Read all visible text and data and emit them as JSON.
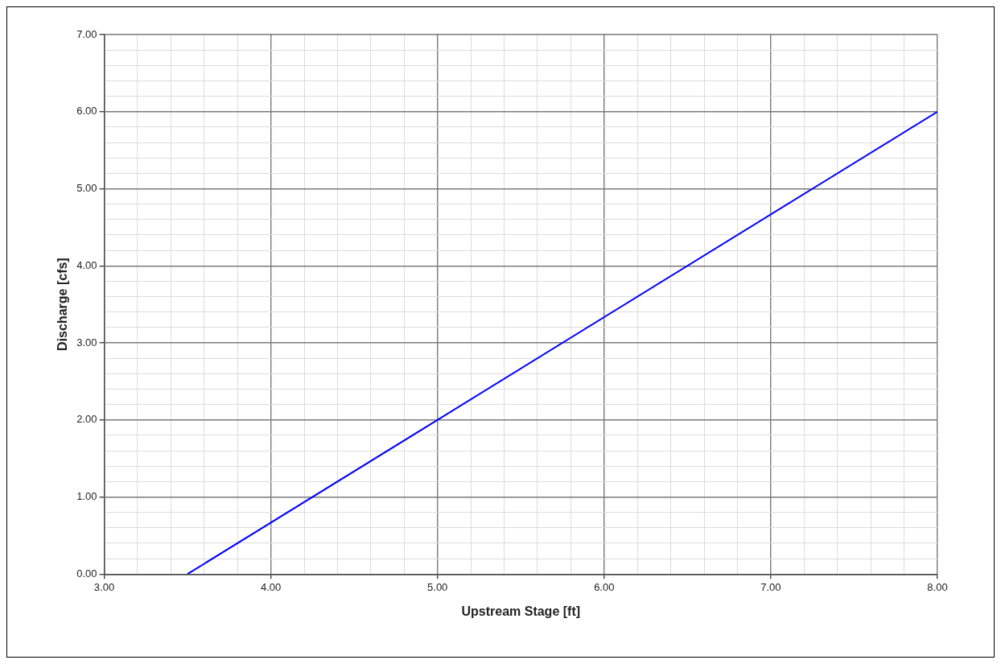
{
  "chart_data": {
    "type": "line",
    "xlabel": "Upstream Stage [ft]",
    "ylabel": "Discharge [cfs]",
    "x": [
      3.5,
      8.0
    ],
    "series": [
      {
        "color": "#0000ff",
        "values": [
          0.0,
          6.0
        ]
      }
    ],
    "xlim": [
      3,
      8
    ],
    "ylim": [
      0,
      7
    ],
    "xticks": [
      {
        "value": 3,
        "label": "3.00"
      },
      {
        "value": 3.2,
        "label": null
      },
      {
        "value": 3.4,
        "label": null
      },
      {
        "value": 3.6,
        "label": null
      },
      {
        "value": 3.8,
        "label": null
      },
      {
        "value": 4,
        "label": "4.00"
      },
      {
        "value": 4.2,
        "label": null
      },
      {
        "value": 4.4,
        "label": null
      },
      {
        "value": 4.6,
        "label": null
      },
      {
        "value": 4.8,
        "label": null
      },
      {
        "value": 5,
        "label": "5.00"
      },
      {
        "value": 5.2,
        "label": null
      },
      {
        "value": 5.4,
        "label": null
      },
      {
        "value": 5.6,
        "label": null
      },
      {
        "value": 5.8,
        "label": null
      },
      {
        "value": 6,
        "label": "6.00"
      },
      {
        "value": 6.2,
        "label": null
      },
      {
        "value": 6.4,
        "label": null
      },
      {
        "value": 6.6,
        "label": null
      },
      {
        "value": 6.8,
        "label": null
      },
      {
        "value": 7,
        "label": "7.00"
      },
      {
        "value": 7.2,
        "label": null
      },
      {
        "value": 7.4,
        "label": null
      },
      {
        "value": 7.6,
        "label": null
      },
      {
        "value": 7.8,
        "label": null
      },
      {
        "value": 8,
        "label": "8.00"
      }
    ],
    "yticks": [
      {
        "value": 0,
        "label": "0.00"
      },
      {
        "value": 0.2,
        "label": null
      },
      {
        "value": 0.4,
        "label": null
      },
      {
        "value": 0.6,
        "label": null
      },
      {
        "value": 0.8,
        "label": null
      },
      {
        "value": 1,
        "label": "1.00"
      },
      {
        "value": 1.2,
        "label": null
      },
      {
        "value": 1.4,
        "label": null
      },
      {
        "value": 1.6,
        "label": null
      },
      {
        "value": 1.8,
        "label": null
      },
      {
        "value": 2,
        "label": "2.00"
      },
      {
        "value": 2.2,
        "label": null
      },
      {
        "value": 2.4,
        "label": null
      },
      {
        "value": 2.6,
        "label": null
      },
      {
        "value": 2.8,
        "label": null
      },
      {
        "value": 3,
        "label": "3.00"
      },
      {
        "value": 3.2,
        "label": null
      },
      {
        "value": 3.4,
        "label": null
      },
      {
        "value": 3.6,
        "label": null
      },
      {
        "value": 3.8,
        "label": null
      },
      {
        "value": 4,
        "label": "4.00"
      },
      {
        "value": 4.2,
        "label": null
      },
      {
        "value": 4.4,
        "label": null
      },
      {
        "value": 4.6,
        "label": null
      },
      {
        "value": 4.8,
        "label": null
      },
      {
        "value": 5,
        "label": "5.00"
      },
      {
        "value": 5.2,
        "label": null
      },
      {
        "value": 5.4,
        "label": null
      },
      {
        "value": 5.6,
        "label": null
      },
      {
        "value": 5.8,
        "label": null
      },
      {
        "value": 6,
        "label": "6.00"
      },
      {
        "value": 6.2,
        "label": null
      },
      {
        "value": 6.4,
        "label": null
      },
      {
        "value": 6.6,
        "label": null
      },
      {
        "value": 6.8,
        "label": null
      },
      {
        "value": 7,
        "label": "7.00"
      }
    ],
    "grid": true,
    "legend": false,
    "marker": "none",
    "line_style": "solid"
  }
}
